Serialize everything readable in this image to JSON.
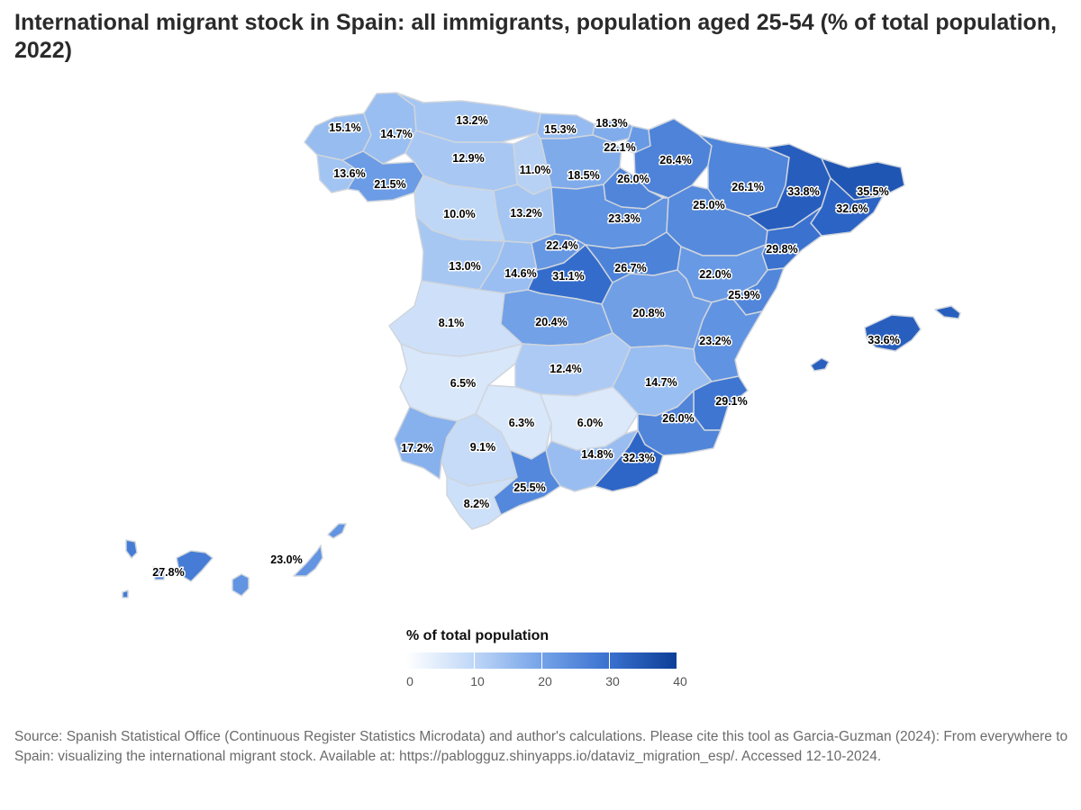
{
  "title": "International migrant stock in Spain: all immigrants, population aged 25-54 (% of total population, 2022)",
  "legend": {
    "title": "% of total population",
    "ticks": [
      "0",
      "10",
      "20",
      "30",
      "40"
    ],
    "min": 0,
    "max": 40
  },
  "colors": {
    "scale": [
      "#ffffff",
      "#cfe1f9",
      "#8fb7ef",
      "#5b8fe0",
      "#2f67c9",
      "#0c3f97"
    ],
    "border": "#cfd5dd"
  },
  "regions": [
    {
      "name": "A Coruña",
      "value": 15.1
    },
    {
      "name": "Lugo",
      "value": 14.7
    },
    {
      "name": "Pontevedra",
      "value": 13.6
    },
    {
      "name": "Ourense",
      "value": 21.5
    },
    {
      "name": "Asturias",
      "value": 13.2
    },
    {
      "name": "León",
      "value": 12.9
    },
    {
      "name": "Cantabria",
      "value": 15.3
    },
    {
      "name": "Bizkaia",
      "value": 18.3
    },
    {
      "name": "Gipuzkoa",
      "value": 22.1
    },
    {
      "name": "Araba/Álava",
      "value": 18.5
    },
    {
      "name": "Navarra",
      "value": 26.4
    },
    {
      "name": "La Rioja",
      "value": 26.0
    },
    {
      "name": "Burgos",
      "value": 11.0
    },
    {
      "name": "Palencia",
      "value": 13.2
    },
    {
      "name": "Zamora",
      "value": 10.0
    },
    {
      "name": "Valladolid",
      "value": 13.2
    },
    {
      "name": "Soria",
      "value": 23.3
    },
    {
      "name": "Huesca",
      "value": 26.1
    },
    {
      "name": "Zaragoza",
      "value": 25.0
    },
    {
      "name": "Lleida",
      "value": 33.8
    },
    {
      "name": "Girona",
      "value": 35.5
    },
    {
      "name": "Barcelona",
      "value": 32.6
    },
    {
      "name": "Tarragona",
      "value": 29.8
    },
    {
      "name": "Salamanca",
      "value": 13.0
    },
    {
      "name": "Ávila",
      "value": 14.6
    },
    {
      "name": "Segovia",
      "value": 22.4
    },
    {
      "name": "Madrid",
      "value": 31.1
    },
    {
      "name": "Guadalajara",
      "value": 26.7
    },
    {
      "name": "Teruel",
      "value": 22.0
    },
    {
      "name": "Castellón",
      "value": 25.9
    },
    {
      "name": "Cáceres",
      "value": 8.1
    },
    {
      "name": "Toledo",
      "value": 20.4
    },
    {
      "name": "Cuenca",
      "value": 20.8
    },
    {
      "name": "Valencia",
      "value": 23.2
    },
    {
      "name": "Badajoz",
      "value": 6.5
    },
    {
      "name": "Ciudad Real",
      "value": 12.4
    },
    {
      "name": "Albacete",
      "value": 14.7
    },
    {
      "name": "Alicante",
      "value": 29.1
    },
    {
      "name": "Murcia",
      "value": 26.0
    },
    {
      "name": "Córdoba",
      "value": 6.3
    },
    {
      "name": "Jaén",
      "value": 6.0
    },
    {
      "name": "Huelva",
      "value": 17.2
    },
    {
      "name": "Sevilla",
      "value": 9.1
    },
    {
      "name": "Granada",
      "value": 14.8
    },
    {
      "name": "Almería",
      "value": 32.3
    },
    {
      "name": "Málaga",
      "value": 25.5
    },
    {
      "name": "Cádiz",
      "value": 8.2
    },
    {
      "name": "Illes Balears",
      "value": 33.6
    },
    {
      "name": "Santa Cruz de Tenerife",
      "value": 27.8
    },
    {
      "name": "Las Palmas",
      "value": 23.0
    }
  ],
  "value_labels": [
    {
      "region": "A Coruña",
      "text": "15.1%"
    },
    {
      "region": "Lugo",
      "text": "14.7%"
    },
    {
      "region": "Pontevedra",
      "text": "13.6%"
    },
    {
      "region": "Ourense",
      "text": "21.5%"
    },
    {
      "region": "Asturias",
      "text": "13.2%"
    },
    {
      "region": "León",
      "text": "12.9%"
    },
    {
      "region": "Cantabria",
      "text": "15.3%"
    },
    {
      "region": "Bizkaia",
      "text": "18.3%"
    },
    {
      "region": "Gipuzkoa",
      "text": "22.1%"
    },
    {
      "region": "Araba/Álava",
      "text": "18.5%"
    },
    {
      "region": "Navarra",
      "text": "26.4%"
    },
    {
      "region": "La Rioja",
      "text": "26.0%"
    },
    {
      "region": "Burgos",
      "text": "11.0%"
    },
    {
      "region": "Palencia",
      "text": "13.2%"
    },
    {
      "region": "Zamora",
      "text": "10.0%"
    },
    {
      "region": "Soria",
      "text": "23.3%"
    },
    {
      "region": "Huesca",
      "text": "26.1%"
    },
    {
      "region": "Zaragoza",
      "text": "25.0%"
    },
    {
      "region": "Lleida",
      "text": "33.8%"
    },
    {
      "region": "Girona",
      "text": "35.5%"
    },
    {
      "region": "Barcelona",
      "text": "32.6%"
    },
    {
      "region": "Tarragona",
      "text": "29.8%"
    },
    {
      "region": "Salamanca",
      "text": "13.0%"
    },
    {
      "region": "Ávila",
      "text": "14.6%"
    },
    {
      "region": "Segovia",
      "text": "22.4%"
    },
    {
      "region": "Madrid",
      "text": "31.1%"
    },
    {
      "region": "Guadalajara",
      "text": "26.7%"
    },
    {
      "region": "Teruel",
      "text": "22.0%"
    },
    {
      "region": "Castellón",
      "text": "25.9%"
    },
    {
      "region": "Cáceres",
      "text": "8.1%"
    },
    {
      "region": "Toledo",
      "text": "20.4%"
    },
    {
      "region": "Cuenca",
      "text": "20.8%"
    },
    {
      "region": "Valencia",
      "text": "23.2%"
    },
    {
      "region": "Badajoz",
      "text": "6.5%"
    },
    {
      "region": "Ciudad Real",
      "text": "12.4%"
    },
    {
      "region": "Albacete",
      "text": "14.7%"
    },
    {
      "region": "Alicante",
      "text": "29.1%"
    },
    {
      "region": "Murcia",
      "text": "26.0%"
    },
    {
      "region": "Córdoba",
      "text": "6.3%"
    },
    {
      "region": "Jaén",
      "text": "6.0%"
    },
    {
      "region": "Huelva",
      "text": "17.2%"
    },
    {
      "region": "Sevilla",
      "text": "9.1%"
    },
    {
      "region": "Granada",
      "text": "14.8%"
    },
    {
      "region": "Almería",
      "text": "32.3%"
    },
    {
      "region": "Málaga",
      "text": "25.5%"
    },
    {
      "region": "Cádiz",
      "text": "8.2%"
    },
    {
      "region": "Illes Balears",
      "text": "33.6%"
    },
    {
      "region": "Santa Cruz de Tenerife",
      "text": "27.8%"
    },
    {
      "region": "Las Palmas",
      "text": "23.0%"
    }
  ],
  "source": "Source: Spanish Statistical Office (Continuous Register Statistics Microdata) and author's calculations. Please cite this tool as Garcia-Guzman (2024): From everywhere to Spain: visualizing the international migrant stock. Available at: https://pablogguz.shinyapps.io/dataviz_migration_esp/. Accessed 12-10-2024."
}
